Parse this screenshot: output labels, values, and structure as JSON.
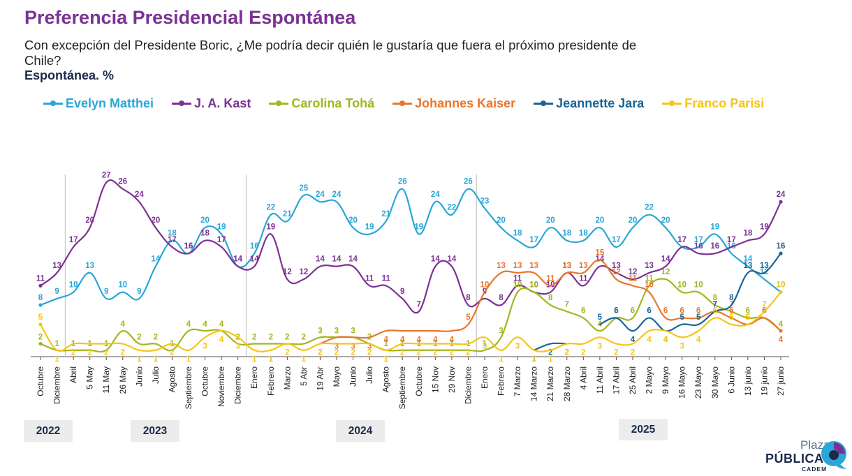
{
  "header": {
    "title": "Preferencia Presidencial Espontánea",
    "subtitle": "Con excepción del Presidente Boric, ¿Me podría decir quién le gustaría que fuera el próximo presidente de Chile?",
    "unit": "Espontánea. %"
  },
  "years": [
    "2022",
    "2023",
    "2024",
    "2025"
  ],
  "logo": {
    "line1": "Plaza",
    "line2": "PÚBLICA",
    "line3": "CADEM"
  },
  "chart_data": {
    "type": "line",
    "categories": [
      "Octubre",
      "Diciembre",
      "Abril",
      "5 May",
      "11 May",
      "26 May",
      "Junio",
      "Julio",
      "Agosto",
      "Septiembre",
      "Octubre",
      "Noviembre",
      "Diciembre",
      "Enero",
      "Febrero",
      "Marzo",
      "5 Abr",
      "19 Abr",
      "Mayo",
      "Junio",
      "Julio",
      "Agosto",
      "Septiembre",
      "Octubre",
      "15 Nov",
      "29 Nov",
      "Diciembre",
      "Enero",
      "Febrero",
      "7 Marzo",
      "14 Marzo",
      "21 Marzo",
      "28 Marzo",
      "4 Abril",
      "11 Abril",
      "17 Abril",
      "25 Abril",
      "2 Mayo",
      "9 Mayo",
      "16 Mayo",
      "23 Mayo",
      "30 Mayo",
      "6 Junio",
      "13 junio",
      "19 junio",
      "27 junio"
    ],
    "ylim": [
      0,
      29
    ],
    "series": [
      {
        "name": "Evelyn Matthei",
        "color": "#2aa6d8",
        "values": [
          8,
          9,
          10,
          13,
          9,
          10,
          9,
          14,
          18,
          16,
          20,
          19,
          14,
          16,
          22,
          21,
          25,
          24,
          24,
          20,
          19,
          21,
          26,
          19,
          24,
          22,
          26,
          23,
          20,
          18,
          17,
          20,
          18,
          18,
          20,
          17,
          20,
          22,
          20,
          17,
          17,
          19,
          16,
          14,
          12,
          10
        ]
      },
      {
        "name": "J. A. Kast",
        "color": "#7b3294",
        "values": [
          11,
          13,
          17,
          20,
          27,
          26,
          24,
          20,
          17,
          16,
          18,
          17,
          14,
          14,
          19,
          12,
          12,
          14,
          14,
          14,
          11,
          11,
          9,
          7,
          14,
          14,
          8,
          9,
          8,
          11,
          10,
          10,
          13,
          11,
          14,
          13,
          12,
          13,
          14,
          17,
          16,
          16,
          17,
          18,
          19,
          24
        ]
      },
      {
        "name": "Carolina Tohá",
        "color": "#a3b61f",
        "values": [
          2,
          1,
          1,
          1,
          1,
          4,
          2,
          2,
          1,
          4,
          4,
          4,
          2,
          2,
          2,
          2,
          2,
          3,
          3,
          3,
          2,
          1,
          1,
          1,
          1,
          1,
          1,
          1,
          3,
          10,
          10,
          8,
          7,
          6,
          4,
          6,
          6,
          11,
          12,
          10,
          10,
          8,
          7,
          6,
          6,
          4
        ]
      },
      {
        "name": "Johannes Kaiser",
        "color": "#e8762c",
        "values": [
          null,
          null,
          null,
          null,
          null,
          null,
          null,
          null,
          null,
          null,
          null,
          null,
          null,
          null,
          null,
          null,
          null,
          2,
          3,
          3,
          3,
          4,
          4,
          4,
          4,
          4,
          5,
          10,
          13,
          13,
          13,
          11,
          13,
          13,
          15,
          12,
          11,
          10,
          6,
          6,
          6,
          7,
          6,
          5,
          6,
          4
        ]
      },
      {
        "name": "Jeannette Jara",
        "color": "#1a6496",
        "values": [
          null,
          null,
          null,
          null,
          null,
          null,
          null,
          null,
          null,
          null,
          null,
          null,
          null,
          null,
          null,
          null,
          null,
          null,
          null,
          null,
          null,
          null,
          null,
          null,
          null,
          null,
          null,
          null,
          null,
          null,
          1,
          2,
          2,
          null,
          5,
          6,
          4,
          6,
          4,
          5,
          5,
          7,
          8,
          13,
          13,
          16
        ]
      },
      {
        "name": "Franco Parisi",
        "color": "#f5c518",
        "values": [
          5,
          1,
          2,
          2,
          2,
          2,
          1,
          1,
          2,
          1,
          3,
          4,
          3,
          1,
          1,
          2,
          1,
          2,
          2,
          2,
          2,
          1,
          2,
          2,
          2,
          2,
          2,
          3,
          1,
          3,
          1,
          1,
          2,
          2,
          3,
          2,
          2,
          4,
          4,
          3,
          4,
          6,
          5,
          5,
          7,
          10
        ]
      }
    ]
  }
}
